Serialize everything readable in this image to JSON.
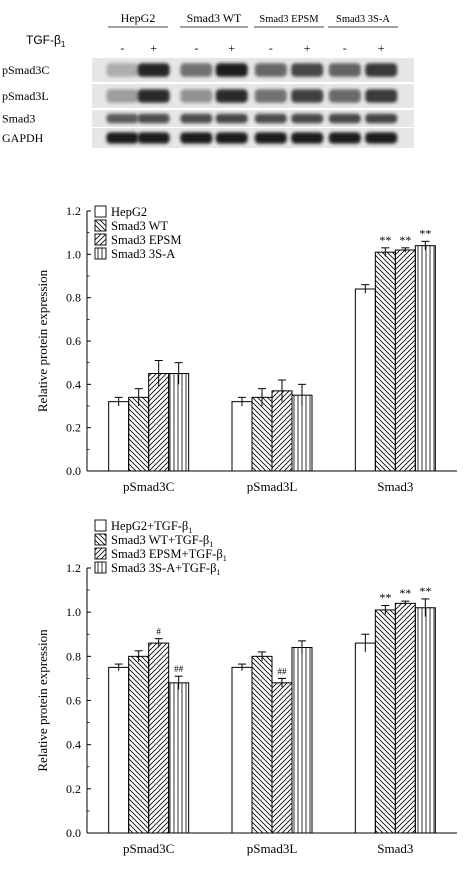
{
  "blot": {
    "group_labels": [
      "HepG2",
      "Smad3 WT",
      "Smad3 EPSM",
      "Smad3 3S-A"
    ],
    "treatment_label": "TGF-β",
    "treatment_subscript": "1",
    "signs": [
      "-",
      "+",
      "-",
      "+",
      "-",
      "+",
      "-",
      "+"
    ],
    "rows": [
      {
        "label": "pSmad3C",
        "intensity": [
          0.28,
          0.9,
          0.55,
          0.95,
          0.6,
          0.75,
          0.62,
          0.82
        ]
      },
      {
        "label": "pSmad3L",
        "intensity": [
          0.35,
          0.88,
          0.4,
          0.88,
          0.55,
          0.78,
          0.58,
          0.8
        ]
      },
      {
        "label": "Smad3",
        "intensity": [
          0.65,
          0.72,
          0.72,
          0.75,
          0.72,
          0.74,
          0.74,
          0.76
        ]
      },
      {
        "label": "GAPDH",
        "intensity": [
          0.95,
          0.95,
          0.95,
          0.95,
          0.95,
          0.95,
          0.95,
          0.95
        ]
      }
    ]
  },
  "chart_data": [
    {
      "type": "bar",
      "categories": [
        "pSmad3C",
        "pSmad3L",
        "Smad3"
      ],
      "ylabel": "Relative protein expression",
      "xlabel": "",
      "ylim": [
        0,
        1.2
      ],
      "yticks": [
        "0.0",
        "0.2",
        "0.4",
        "0.6",
        "0.8",
        "1.0",
        "1.2"
      ],
      "legend_position": "top-left",
      "series": [
        {
          "name": "HepG2",
          "values": [
            0.32,
            0.32,
            0.84
          ],
          "errors": [
            0.02,
            0.02,
            0.02
          ],
          "pattern": "none"
        },
        {
          "name": "Smad3 WT",
          "values": [
            0.34,
            0.34,
            1.01
          ],
          "errors": [
            0.04,
            0.04,
            0.02
          ],
          "pattern": "back"
        },
        {
          "name": "Smad3 EPSM",
          "values": [
            0.45,
            0.37,
            1.02
          ],
          "errors": [
            0.06,
            0.05,
            0.01
          ],
          "pattern": "fwd"
        },
        {
          "name": "Smad3 3S-A",
          "values": [
            0.45,
            0.35,
            1.04
          ],
          "errors": [
            0.05,
            0.05,
            0.02
          ],
          "pattern": "vert"
        }
      ],
      "annotations": [
        {
          "series": 1,
          "category": 2,
          "text": "**"
        },
        {
          "series": 2,
          "category": 2,
          "text": "**"
        },
        {
          "series": 3,
          "category": 2,
          "text": "**"
        }
      ]
    },
    {
      "type": "bar",
      "categories": [
        "pSmad3C",
        "pSmad3L",
        "Smad3"
      ],
      "ylabel": "Relative protein expression",
      "xlabel": "",
      "ylim": [
        0,
        1.2
      ],
      "yticks": [
        "0.0",
        "0.2",
        "0.4",
        "0.6",
        "0.8",
        "1.0",
        "1.2"
      ],
      "legend_position": "top-left",
      "legend_suffix": "+TGF-β",
      "legend_suffix_subscript": "1",
      "series": [
        {
          "name": "HepG2",
          "values": [
            0.75,
            0.75,
            0.86
          ],
          "errors": [
            0.015,
            0.015,
            0.04
          ],
          "pattern": "none"
        },
        {
          "name": "Smad3 WT",
          "values": [
            0.8,
            0.8,
            1.01
          ],
          "errors": [
            0.025,
            0.02,
            0.02
          ],
          "pattern": "back"
        },
        {
          "name": "Smad3 EPSM",
          "values": [
            0.86,
            0.68,
            1.04
          ],
          "errors": [
            0.02,
            0.02,
            0.01
          ],
          "pattern": "fwd"
        },
        {
          "name": "Smad3 3S-A",
          "values": [
            0.68,
            0.84,
            1.02
          ],
          "errors": [
            0.03,
            0.03,
            0.04
          ],
          "pattern": "vert"
        }
      ],
      "annotations": [
        {
          "series": 2,
          "category": 0,
          "text": "#"
        },
        {
          "series": 3,
          "category": 0,
          "text": "##"
        },
        {
          "series": 2,
          "category": 1,
          "text": "##"
        },
        {
          "series": 1,
          "category": 2,
          "text": "**"
        },
        {
          "series": 2,
          "category": 2,
          "text": "**"
        },
        {
          "series": 3,
          "category": 2,
          "text": "**"
        }
      ]
    }
  ]
}
